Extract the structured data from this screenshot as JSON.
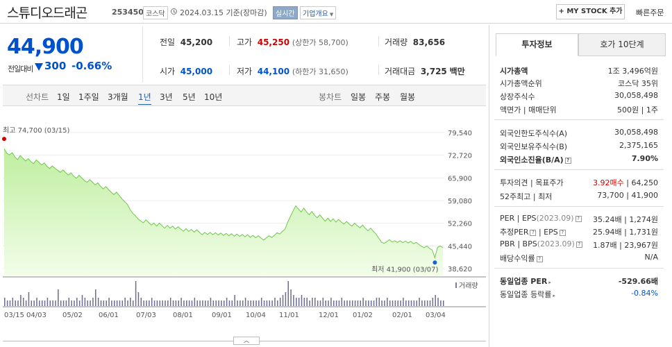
{
  "header": {
    "name": "스튜디오드래곤",
    "code": "253450",
    "market": "코스닥",
    "date": "2024.03.15 기준(장마감)",
    "realtime": "실시간",
    "company": "기업개요",
    "mystock": "+ MY STOCK 추가",
    "quick_order": "빠른주문"
  },
  "price": {
    "current": "44,900",
    "prev_label": "전일대비",
    "change": "300",
    "change_rate": "-0.66%",
    "direction": "down",
    "color": "#0052cc"
  },
  "stats": {
    "prev_close": {
      "label": "전일",
      "value": "45,200"
    },
    "high": {
      "label": "고가",
      "value": "45,250",
      "sub": "(상한가 58,700)"
    },
    "volume": {
      "label": "거래량",
      "value": "83,656"
    },
    "open": {
      "label": "시가",
      "value": "45,000"
    },
    "low": {
      "label": "저가",
      "value": "44,100",
      "sub": "(하한가 31,650)"
    },
    "amount": {
      "label": "거래대금",
      "value": "3,725",
      "unit": "백만"
    }
  },
  "chart_tabs": {
    "line_label": "선차트",
    "periods": [
      "1일",
      "1주일",
      "3개월",
      "1년",
      "3년",
      "5년",
      "10년"
    ],
    "selected": "1년",
    "candle_label": "봉차트",
    "candles": [
      "일봉",
      "주봉",
      "월봉"
    ]
  },
  "chart_data": {
    "type": "area",
    "y_ticks": [
      "79,540",
      "72,720",
      "65,900",
      "59,080",
      "52,260",
      "45,440",
      "38,620"
    ],
    "ylim": [
      38620,
      79540
    ],
    "x_ticks": [
      "03/15",
      "04/03",
      "05/02",
      "06/01",
      "07/03",
      "08/01",
      "09/01",
      "10/04",
      "11/01",
      "12/01",
      "01/02",
      "02/01",
      "03/04"
    ],
    "max_label": "최고 74,700 (03/15)",
    "min_label": "최저 41,900 (03/07)",
    "volume_label": "거래량",
    "prices": [
      74700,
      73300,
      72800,
      73500,
      72200,
      71400,
      72600,
      71800,
      71000,
      71700,
      70800,
      70200,
      71300,
      70600,
      69800,
      70400,
      69400,
      68700,
      69500,
      68800,
      68200,
      67600,
      68300,
      67500,
      66800,
      67400,
      66400,
      65800,
      66700,
      65900,
      65100,
      64600,
      65400,
      64600,
      63800,
      64400,
      63400,
      62600,
      63300,
      62400,
      61600,
      60900,
      61600,
      60600,
      59600,
      58800,
      58000,
      56500,
      55300,
      54600,
      53600,
      53000,
      52400,
      53300,
      52500,
      51700,
      52300,
      51400,
      52300,
      51500,
      50800,
      51600,
      50800,
      51400,
      50500,
      51200,
      50500,
      49900,
      50600,
      49800,
      50400,
      49600,
      50300,
      49500,
      48800,
      49500,
      48900,
      49500,
      48800,
      49400,
      48700,
      49300,
      48600,
      49200,
      48500,
      49100,
      48400,
      49000,
      48300,
      48900,
      48200,
      48800,
      48000,
      48600,
      47900,
      48500,
      47800,
      47200,
      47900,
      48500,
      48000,
      48600,
      49400,
      49000,
      49800,
      50500,
      52600,
      54300,
      56000,
      57500,
      56600,
      55600,
      56800,
      55700,
      54800,
      55800,
      54700,
      53900,
      54800,
      53800,
      52900,
      53800,
      52800,
      53600,
      52600,
      53400,
      52600,
      52000,
      52800,
      52000,
      51400,
      52300,
      51500,
      50900,
      51700,
      50700,
      50000,
      50800,
      49800,
      49000,
      47800,
      46600,
      46200,
      46700,
      47300,
      46600,
      47000,
      46500,
      47000,
      46400,
      46900,
      46300,
      46800,
      46100,
      46500,
      45900,
      45300,
      44900,
      45400,
      44700,
      44200,
      41900,
      45000,
      45400,
      44900
    ],
    "volume": [
      3,
      2,
      2,
      3,
      2,
      2,
      4,
      3,
      2,
      5,
      2,
      2,
      3,
      2,
      2,
      2,
      3,
      2,
      2,
      2,
      6,
      2,
      2,
      2,
      3,
      2,
      2,
      3,
      2,
      4,
      3,
      2,
      2,
      3,
      6,
      3,
      2,
      2,
      2,
      3,
      2,
      2,
      2,
      2,
      2,
      3,
      2,
      3,
      2,
      9,
      5,
      3,
      2,
      2,
      2,
      3,
      2,
      2,
      2,
      2,
      2,
      2,
      3,
      2,
      2,
      2,
      3,
      2,
      2,
      2,
      2,
      3,
      2,
      2,
      2,
      2,
      2,
      3,
      2,
      2,
      2,
      2,
      2,
      3,
      2,
      2,
      4,
      2,
      2,
      2,
      3,
      2,
      2,
      2,
      2,
      2,
      3,
      2,
      2,
      2,
      2,
      3,
      2,
      3,
      4,
      5,
      9,
      6,
      4,
      3,
      3,
      4,
      3,
      3,
      2,
      3,
      3,
      2,
      2,
      3,
      2,
      2,
      3,
      2,
      2,
      2,
      3,
      2,
      2,
      2,
      2,
      2,
      2,
      2,
      3,
      2,
      2,
      2,
      2,
      3,
      3,
      2,
      2,
      3,
      2,
      2,
      2,
      2,
      2,
      3,
      2,
      2,
      2,
      2,
      2,
      3,
      2,
      2,
      2,
      2,
      3,
      4,
      3,
      2,
      2
    ],
    "line_color": "#6ec84a",
    "fill_color": "#c9f1aa",
    "max_color": "#d20000",
    "min_color": "#1d62c5"
  },
  "panel": {
    "tabs": [
      "투자정보",
      "호가 10단계"
    ],
    "market_cap": {
      "label": "시가총액",
      "value": "1조 3,496억원"
    },
    "cap_rank": {
      "label": "시가총액순위",
      "value": "코스닥 35위"
    },
    "shares": {
      "label": "상장주식수",
      "value": "30,058,498"
    },
    "par": {
      "label": "액면가",
      "label2": "매매단위",
      "value": "500원",
      "value2": "1주"
    },
    "foreign_limit": {
      "label": "외국인한도주식수(A)",
      "value": "30,058,498"
    },
    "foreign_hold": {
      "label": "외국인보유주식수(B)",
      "value": "2,375,165"
    },
    "foreign_rate": {
      "label": "외국인소진율(B/A)",
      "value": "7.90%"
    },
    "opinion": {
      "label": "투자의견",
      "label2": "목표주가",
      "value": "3.92매수",
      "value2": "64,250"
    },
    "week52": {
      "label": "52주최고",
      "label2": "최저",
      "value": "73,700",
      "value2": "41,900"
    },
    "per": {
      "label": "PER",
      "label2": "EPS",
      "period": "(2023.09)",
      "value": "35.24배",
      "value2": "1,274원"
    },
    "est_per": {
      "label": "추정PER",
      "label2": "EPS",
      "value": "25.94배",
      "value2": "1,731원"
    },
    "pbr": {
      "label": "PBR",
      "label2": "BPS",
      "period": "(2023.09)",
      "value": "1.87배",
      "value2": "23,967원"
    },
    "dividend": {
      "label": "배당수익률",
      "value": "N/A"
    },
    "industry_per": {
      "label": "동일업종 PER",
      "value": "-529.66배"
    },
    "industry_rate": {
      "label": "동일업종 등락률",
      "value": "-0.84%"
    }
  }
}
